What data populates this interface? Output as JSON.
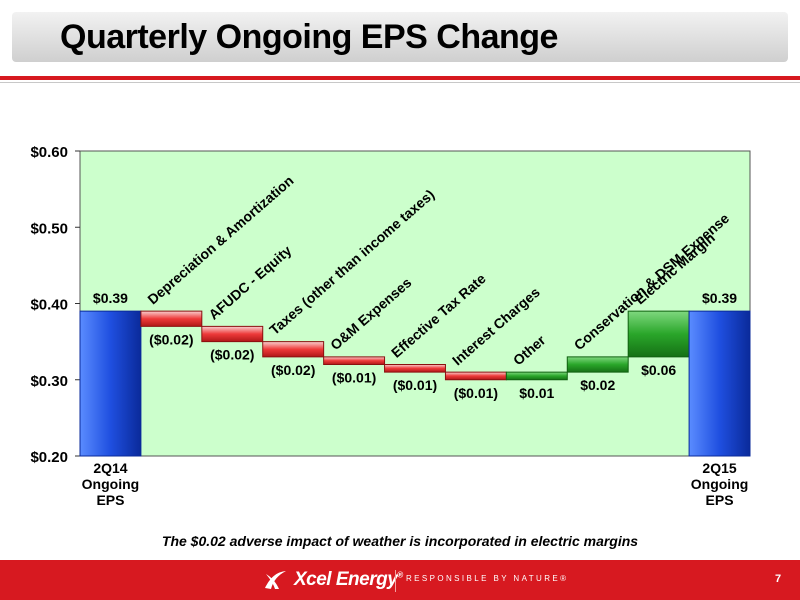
{
  "header": {
    "title": "Quarterly Ongoing EPS Change"
  },
  "footnote": "The $0.02 adverse impact of weather is incorporated in electric margins",
  "footer": {
    "brand": "Xcel Energy",
    "brand_mark": "®",
    "tagline": "RESPONSIBLE BY NATURE®",
    "page_number": "7",
    "logo_icon": "xcel-swoosh-icon"
  },
  "colors": {
    "accent": "#d71920",
    "plot_bg": "#ccffcc",
    "total": "#1f4fe0",
    "decrease": "#e8282a",
    "increase": "#22a022"
  },
  "chart_data": {
    "type": "bar",
    "subtype": "waterfall",
    "ylim": [
      0.2,
      0.6
    ],
    "yticks": [
      0.2,
      0.3,
      0.4,
      0.5,
      0.6
    ],
    "ytick_labels": [
      "$0.20",
      "$0.30",
      "$0.40",
      "$0.50",
      "$0.60"
    ],
    "grid": false,
    "bars": [
      {
        "category": "2Q14 Ongoing EPS",
        "label_lines": [
          "2Q14",
          "Ongoing",
          "EPS"
        ],
        "kind": "total",
        "start": 0.2,
        "end": 0.39,
        "value_label": "$0.39"
      },
      {
        "category": "Depreciation & Amortization",
        "kind": "decrease",
        "start": 0.39,
        "end": 0.37,
        "value_label": "($0.02)"
      },
      {
        "category": "AFUDC - Equity",
        "kind": "decrease",
        "start": 0.37,
        "end": 0.35,
        "value_label": "($0.02)"
      },
      {
        "category": "Taxes (other than income taxes)",
        "kind": "decrease",
        "start": 0.35,
        "end": 0.33,
        "value_label": "($0.02)"
      },
      {
        "category": "O&M Expenses",
        "kind": "decrease",
        "start": 0.33,
        "end": 0.32,
        "value_label": "($0.01)"
      },
      {
        "category": "Effective Tax Rate",
        "kind": "decrease",
        "start": 0.32,
        "end": 0.31,
        "value_label": "($0.01)"
      },
      {
        "category": "Interest Charges",
        "kind": "decrease",
        "start": 0.31,
        "end": 0.3,
        "value_label": "($0.01)"
      },
      {
        "category": "Other",
        "kind": "increase",
        "start": 0.3,
        "end": 0.31,
        "value_label": "$0.01"
      },
      {
        "category": "Conservation & DSM Expense",
        "kind": "increase",
        "start": 0.31,
        "end": 0.33,
        "value_label": "$0.02"
      },
      {
        "category": "Electric Margin",
        "kind": "increase",
        "start": 0.33,
        "end": 0.39,
        "value_label": "$0.06"
      },
      {
        "category": "2Q15 Ongoing EPS",
        "label_lines": [
          "2Q15",
          "Ongoing",
          "EPS"
        ],
        "kind": "total",
        "start": 0.2,
        "end": 0.39,
        "value_label": "$0.39"
      }
    ]
  }
}
